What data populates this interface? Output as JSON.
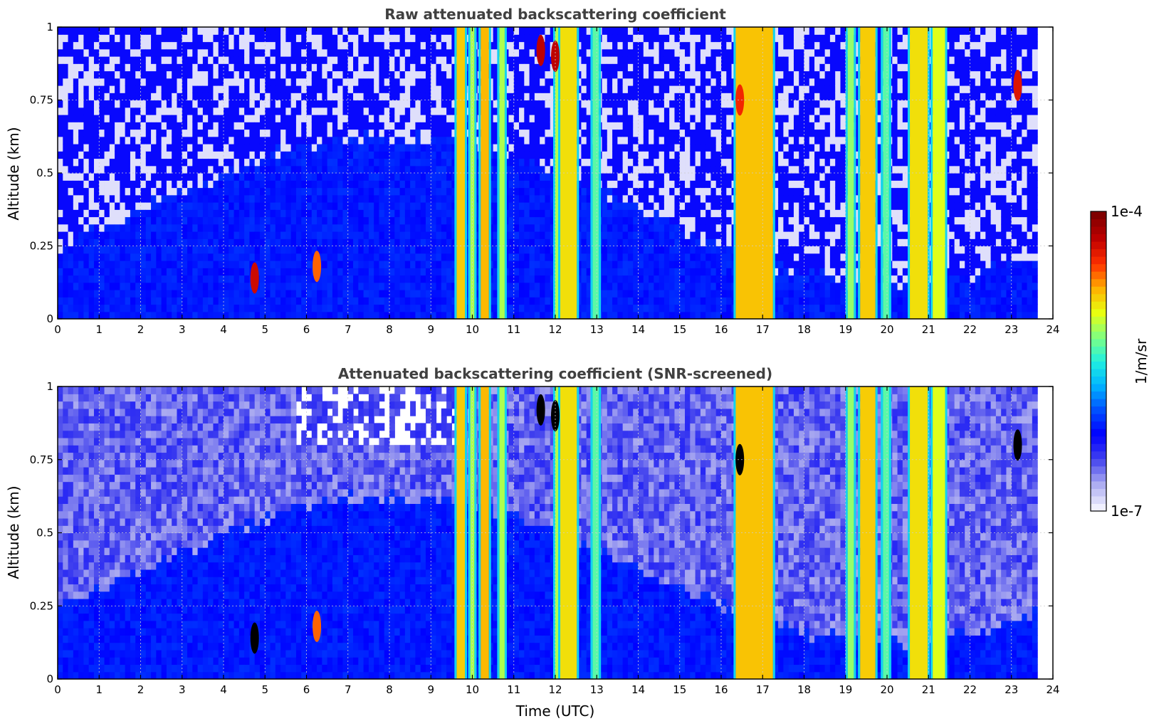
{
  "chart_data": [
    {
      "type": "heatmap",
      "title": "Raw attenuated backscattering coefficient",
      "xlabel": "",
      "ylabel": "Altitude (km)",
      "xlim": [
        0,
        24
      ],
      "ylim": [
        0,
        1
      ],
      "x_ticks": [
        "0",
        "1",
        "2",
        "3",
        "4",
        "5",
        "6",
        "7",
        "8",
        "9",
        "10",
        "11",
        "12",
        "13",
        "14",
        "15",
        "16",
        "17",
        "18",
        "19",
        "20",
        "21",
        "22",
        "23",
        "24"
      ],
      "y_ticks": [
        "0",
        "0.25",
        "0.5",
        "0.75",
        "1"
      ],
      "grid": true,
      "screened": false,
      "data_end_time": 23.65,
      "cloud_columns": [
        {
          "start": 9.62,
          "end": 9.82,
          "level": 0.72
        },
        {
          "start": 9.95,
          "end": 10.05,
          "level": 0.62
        },
        {
          "start": 10.2,
          "end": 10.4,
          "level": 0.74
        },
        {
          "start": 10.65,
          "end": 10.78,
          "level": 0.62
        },
        {
          "start": 12.0,
          "end": 12.12,
          "level": 0.62
        },
        {
          "start": 12.12,
          "end": 12.52,
          "level": 0.7
        },
        {
          "start": 12.9,
          "end": 13.05,
          "level": 0.55
        },
        {
          "start": 16.35,
          "end": 17.25,
          "level": 0.73
        },
        {
          "start": 19.05,
          "end": 19.2,
          "level": 0.6
        },
        {
          "start": 19.35,
          "end": 19.72,
          "level": 0.72
        },
        {
          "start": 19.9,
          "end": 20.05,
          "level": 0.55
        },
        {
          "start": 20.55,
          "end": 20.98,
          "level": 0.7
        },
        {
          "start": 21.1,
          "end": 21.4,
          "level": 0.66
        }
      ],
      "features": [
        {
          "time": 4.75,
          "altitude": 0.14,
          "level": 0.9
        },
        {
          "time": 6.25,
          "altitude": 0.18,
          "level": 0.8
        },
        {
          "time": 11.65,
          "altitude": 0.92,
          "level": 0.92
        },
        {
          "time": 12.0,
          "altitude": 0.9,
          "level": 0.92
        },
        {
          "time": 16.45,
          "altitude": 0.75,
          "level": 0.85
        },
        {
          "time": 23.15,
          "altitude": 0.8,
          "level": 0.88
        }
      ]
    },
    {
      "type": "heatmap",
      "title": "Attenuated backscattering coefficient (SNR-screened)",
      "xlabel": "Time (UTC)",
      "ylabel": "Altitude (km)",
      "xlim": [
        0,
        24
      ],
      "ylim": [
        0,
        1
      ],
      "x_ticks": [
        "0",
        "1",
        "2",
        "3",
        "4",
        "5",
        "6",
        "7",
        "8",
        "9",
        "10",
        "11",
        "12",
        "13",
        "14",
        "15",
        "16",
        "17",
        "18",
        "19",
        "20",
        "21",
        "22",
        "23",
        "24"
      ],
      "y_ticks": [
        "0",
        "0.25",
        "0.5",
        "0.75",
        "1"
      ],
      "grid": true,
      "screened": true,
      "data_end_time": 23.65,
      "cloud_columns": [
        {
          "start": 9.62,
          "end": 9.82,
          "level": 0.72
        },
        {
          "start": 9.95,
          "end": 10.05,
          "level": 0.62
        },
        {
          "start": 10.2,
          "end": 10.4,
          "level": 0.74
        },
        {
          "start": 10.65,
          "end": 10.78,
          "level": 0.62
        },
        {
          "start": 12.0,
          "end": 12.12,
          "level": 0.62
        },
        {
          "start": 12.12,
          "end": 12.52,
          "level": 0.7
        },
        {
          "start": 12.9,
          "end": 13.05,
          "level": 0.55
        },
        {
          "start": 16.35,
          "end": 17.25,
          "level": 0.73
        },
        {
          "start": 19.05,
          "end": 19.2,
          "level": 0.6
        },
        {
          "start": 19.35,
          "end": 19.72,
          "level": 0.72
        },
        {
          "start": 19.9,
          "end": 20.05,
          "level": 0.55
        },
        {
          "start": 20.55,
          "end": 20.98,
          "level": 0.7
        },
        {
          "start": 21.1,
          "end": 21.4,
          "level": 0.66
        }
      ],
      "features": [
        {
          "time": 4.75,
          "altitude": 0.14,
          "level": 1.0
        },
        {
          "time": 6.25,
          "altitude": 0.18,
          "level": 0.8
        },
        {
          "time": 11.65,
          "altitude": 0.92,
          "level": 1.0
        },
        {
          "time": 12.0,
          "altitude": 0.9,
          "level": 1.0
        },
        {
          "time": 16.45,
          "altitude": 0.75,
          "level": 1.0
        },
        {
          "time": 23.15,
          "altitude": 0.8,
          "level": 1.0
        }
      ]
    }
  ],
  "colorbar": {
    "label": "1/m/sr",
    "max_label": "1e-4",
    "min_label": "1e-7",
    "scale": "log",
    "colormap": "jet",
    "colors": [
      "#f0f0ff",
      "#a8a8f0",
      "#4040ee",
      "#0000ff",
      "#0050ff",
      "#00b4ff",
      "#20f0e0",
      "#80ff80",
      "#e8ff10",
      "#ffb000",
      "#ff3000",
      "#c00000",
      "#800000"
    ]
  }
}
